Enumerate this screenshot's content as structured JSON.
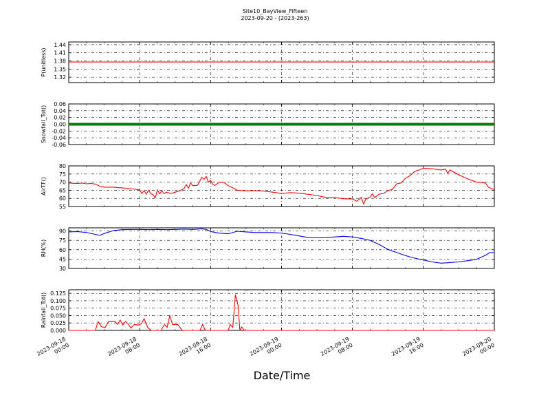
{
  "figure": {
    "title_line1": "Site10_BayView_Fifteen",
    "title_line2": "2023-09-20 - (2023-263)",
    "xlabel": "Date/Time"
  },
  "chart_data": {
    "type": "line",
    "x_range": [
      "2023-09-18 00:00",
      "2023-09-20 00:00"
    ],
    "x_ticks": [
      {
        "line1": "2023-09-18",
        "line2": "00:00",
        "hours": 0
      },
      {
        "line1": "2023-09-18",
        "line2": "08:00",
        "hours": 8
      },
      {
        "line1": "2023-09-18",
        "line2": "16:00",
        "hours": 16
      },
      {
        "line1": "2023-09-19",
        "line2": "00:00",
        "hours": 24
      },
      {
        "line1": "2023-09-19",
        "line2": "08:00",
        "hours": 32
      },
      {
        "line1": "2023-09-19",
        "line2": "16:00",
        "hours": 40
      },
      {
        "line1": "2023-09-20",
        "line2": "00:00",
        "hours": 48
      }
    ],
    "grid": true,
    "panels": [
      {
        "name": "P",
        "ylabel": "P(unitless)",
        "ylim": [
          1.3,
          1.45
        ],
        "yticks": [
          1.32,
          1.35,
          1.38,
          1.41,
          1.44
        ],
        "yfmt": 2,
        "color": "#ff0000",
        "style": "line",
        "points": [
          [
            0,
            1.376
          ],
          [
            48,
            1.376
          ]
        ]
      },
      {
        "name": "Snowfall",
        "ylabel": "Snowfall_Tot()",
        "ylim": [
          -0.06,
          0.06
        ],
        "yticks": [
          -0.06,
          -0.04,
          -0.02,
          0.0,
          0.02,
          0.04,
          0.06
        ],
        "yfmt": 2,
        "color": "#008000",
        "style": "thick",
        "points": [
          [
            0,
            0.0
          ],
          [
            48,
            0.0
          ]
        ]
      },
      {
        "name": "AirTF",
        "ylabel": "AirTF()",
        "ylim": [
          55,
          80
        ],
        "yticks": [
          55,
          60,
          65,
          70,
          75,
          80
        ],
        "yfmt": 0,
        "color": "#ff0000",
        "style": "line",
        "points": [
          [
            0,
            69.5
          ],
          [
            0.5,
            69.3
          ],
          [
            1,
            69.2
          ],
          [
            1.5,
            69.4
          ],
          [
            2,
            69.0
          ],
          [
            2.5,
            69.2
          ],
          [
            3,
            68.8
          ],
          [
            3.5,
            67.5
          ],
          [
            4,
            66.9
          ],
          [
            5,
            66.9
          ],
          [
            6,
            66.5
          ],
          [
            7,
            66.0
          ],
          [
            7.5,
            65.6
          ],
          [
            8,
            65.3
          ],
          [
            8.25,
            63.0
          ],
          [
            8.5,
            64.8
          ],
          [
            8.75,
            62.6
          ],
          [
            9,
            65.0
          ],
          [
            9.25,
            62.8
          ],
          [
            9.5,
            62.5
          ],
          [
            9.75,
            60.2
          ],
          [
            10,
            65.2
          ],
          [
            10.25,
            62.7
          ],
          [
            10.5,
            64.8
          ],
          [
            10.75,
            62.9
          ],
          [
            11,
            63.8
          ],
          [
            11.5,
            63.0
          ],
          [
            12,
            63.8
          ],
          [
            12.5,
            64.6
          ],
          [
            13,
            66.0
          ],
          [
            13.25,
            68.5
          ],
          [
            13.5,
            66.2
          ],
          [
            13.75,
            69.5
          ],
          [
            14,
            67.8
          ],
          [
            14.5,
            68.0
          ],
          [
            14.75,
            70.2
          ],
          [
            15,
            73.0
          ],
          [
            15.25,
            71.8
          ],
          [
            15.5,
            73.5
          ],
          [
            15.75,
            70.0
          ],
          [
            16,
            71.0
          ],
          [
            16.25,
            68.5
          ],
          [
            16.5,
            68.0
          ],
          [
            17,
            70.0
          ],
          [
            17.5,
            69.8
          ],
          [
            18,
            67.8
          ],
          [
            18.5,
            66.5
          ],
          [
            19,
            65.0
          ],
          [
            20,
            64.6
          ],
          [
            21,
            64.8
          ],
          [
            22,
            64.5
          ],
          [
            23,
            63.8
          ],
          [
            24,
            63.0
          ],
          [
            25,
            63.5
          ],
          [
            26,
            63.2
          ],
          [
            27,
            62.5
          ],
          [
            28,
            61.8
          ],
          [
            29,
            60.6
          ],
          [
            30,
            60.5
          ],
          [
            31,
            59.8
          ],
          [
            32,
            59.6
          ],
          [
            32.5,
            58.3
          ],
          [
            33,
            60.6
          ],
          [
            33.25,
            56.5
          ],
          [
            33.5,
            59.5
          ],
          [
            34,
            61.0
          ],
          [
            34.25,
            62.8
          ],
          [
            34.5,
            60.5
          ],
          [
            35,
            62.6
          ],
          [
            35.5,
            63.0
          ],
          [
            36,
            64.8
          ],
          [
            36.5,
            65.5
          ],
          [
            37,
            69.0
          ],
          [
            37.5,
            69.5
          ],
          [
            38,
            72.5
          ],
          [
            38.5,
            74.0
          ],
          [
            39,
            76.5
          ],
          [
            39.5,
            77.5
          ],
          [
            40,
            78.5
          ],
          [
            41,
            78.2
          ],
          [
            42,
            77.5
          ],
          [
            42.5,
            78.0
          ],
          [
            42.75,
            75.5
          ],
          [
            43,
            77.5
          ],
          [
            44,
            74.5
          ],
          [
            45,
            72.0
          ],
          [
            46,
            70.0
          ],
          [
            47,
            69.5
          ],
          [
            47.3,
            67.0
          ],
          [
            47.7,
            66.0
          ],
          [
            48,
            65.5
          ]
        ]
      },
      {
        "name": "RH",
        "ylabel": "RH(%)",
        "ylim": [
          30,
          95
        ],
        "yticks": [
          30,
          45,
          60,
          75,
          90
        ],
        "yfmt": 0,
        "color": "#0000ff",
        "style": "line",
        "points": [
          [
            0,
            88.5
          ],
          [
            1,
            89.0
          ],
          [
            2,
            87.5
          ],
          [
            3,
            84.5
          ],
          [
            3.5,
            83.0
          ],
          [
            4,
            86.0
          ],
          [
            5,
            90.5
          ],
          [
            6,
            92.0
          ],
          [
            7,
            92.5
          ],
          [
            8,
            92.5
          ],
          [
            9,
            92.0
          ],
          [
            10,
            92.5
          ],
          [
            11,
            92.0
          ],
          [
            12,
            92.5
          ],
          [
            13,
            93.0
          ],
          [
            14,
            92.5
          ],
          [
            15,
            93.5
          ],
          [
            15.5,
            92.5
          ],
          [
            16,
            89.0
          ],
          [
            17,
            86.5
          ],
          [
            18,
            85.5
          ],
          [
            19,
            89.5
          ],
          [
            20,
            88.5
          ],
          [
            21,
            87.5
          ],
          [
            22,
            87.5
          ],
          [
            23,
            87.5
          ],
          [
            24,
            86.5
          ],
          [
            25,
            84.5
          ],
          [
            26,
            82.0
          ],
          [
            27,
            79.5
          ],
          [
            28,
            79.0
          ],
          [
            29,
            79.5
          ],
          [
            30,
            80.5
          ],
          [
            31,
            81.5
          ],
          [
            32,
            80.5
          ],
          [
            33,
            78.0
          ],
          [
            34,
            75.0
          ],
          [
            35,
            68.5
          ],
          [
            36,
            60.5
          ],
          [
            37,
            55.5
          ],
          [
            38,
            50.5
          ],
          [
            39,
            46.5
          ],
          [
            40,
            43.5
          ],
          [
            41,
            40.5
          ],
          [
            42,
            38.5
          ],
          [
            43,
            39.5
          ],
          [
            44,
            40.5
          ],
          [
            45,
            42.5
          ],
          [
            46,
            44.5
          ],
          [
            47,
            51.0
          ],
          [
            47.5,
            55.5
          ],
          [
            48,
            55.5
          ]
        ]
      },
      {
        "name": "Rainfall",
        "ylabel": "Rainfall_Tot()",
        "ylim": [
          0,
          0.137
        ],
        "yticks": [
          0.0,
          0.025,
          0.05,
          0.075,
          0.1,
          0.125
        ],
        "yfmt": 3,
        "color": "#ff0000",
        "style": "line",
        "points": [
          [
            0,
            0
          ],
          [
            3,
            0
          ],
          [
            3.3,
            0.03
          ],
          [
            3.7,
            0.012
          ],
          [
            4.1,
            0.01
          ],
          [
            4.5,
            0.03
          ],
          [
            5.2,
            0.03
          ],
          [
            5.5,
            0.02
          ],
          [
            5.8,
            0.035
          ],
          [
            6.1,
            0.018
          ],
          [
            6.4,
            0.03
          ],
          [
            6.7,
            0.022
          ],
          [
            7.0,
            0.008
          ],
          [
            7.4,
            0.02
          ],
          [
            7.8,
            0.018
          ],
          [
            8.2,
            0.022
          ],
          [
            8.5,
            0.04
          ],
          [
            8.9,
            0.01
          ],
          [
            9.3,
            0
          ],
          [
            10.4,
            0
          ],
          [
            10.8,
            0.02
          ],
          [
            11.1,
            0.01
          ],
          [
            11.4,
            0.05
          ],
          [
            11.7,
            0.02
          ],
          [
            12.3,
            0.02
          ],
          [
            12.8,
            0
          ],
          [
            14.8,
            0
          ],
          [
            15.1,
            0.02
          ],
          [
            15.4,
            0
          ],
          [
            18,
            0
          ],
          [
            18.2,
            0.02
          ],
          [
            18.5,
            0.01
          ],
          [
            18.8,
            0.12
          ],
          [
            19.1,
            0.085
          ],
          [
            19.3,
            0
          ],
          [
            19.5,
            0.012
          ],
          [
            19.8,
            0
          ],
          [
            48,
            0
          ]
        ]
      }
    ]
  }
}
